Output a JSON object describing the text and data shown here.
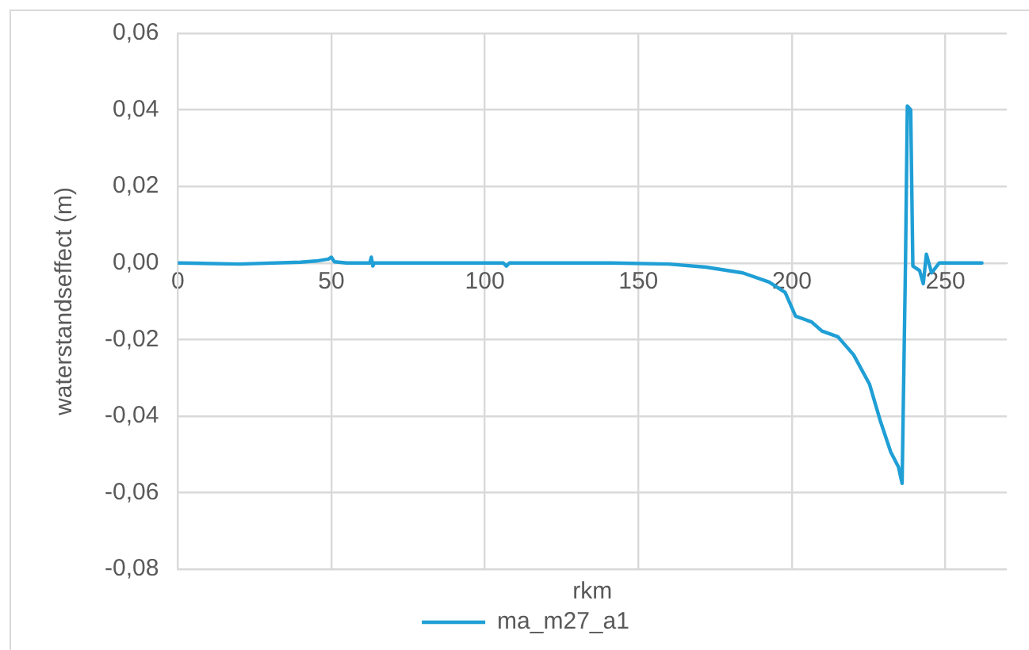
{
  "chart_data": {
    "type": "line",
    "xlabel": "rkm",
    "ylabel": "waterstandseffect (m)",
    "xlim": [
      0,
      270
    ],
    "xticks": [
      0,
      50,
      100,
      150,
      200,
      250
    ],
    "ylim": [
      -0.08,
      0.06
    ],
    "yticks": [
      {
        "value": -0.08,
        "label": "-0,08"
      },
      {
        "value": -0.06,
        "label": "-0,06"
      },
      {
        "value": -0.04,
        "label": "-0,04"
      },
      {
        "value": -0.02,
        "label": "-0,02"
      },
      {
        "value": 0,
        "label": "0,00"
      },
      {
        "value": 0.02,
        "label": "0,02"
      },
      {
        "value": 0.04,
        "label": "0,04"
      },
      {
        "value": 0.06,
        "label": "0,06"
      }
    ],
    "grid": true,
    "legend": "bottom",
    "marker": "none",
    "line_style": "solid",
    "series": [
      {
        "name": "ma_m27_a1",
        "color": "#1f9fd5",
        "x": [
          0,
          20,
          40,
          45,
          49,
          50,
          51,
          55,
          62.5,
          63,
          63.5,
          64,
          100,
          106,
          107,
          108,
          141,
          160,
          172,
          184,
          192.6,
          197.8,
          201.2,
          206.4,
          209.8,
          215,
          220.1,
          225.3,
          228.7,
          232.2,
          234.7,
          235.9,
          237,
          237.6,
          238.7,
          239.4,
          241.6,
          242.8,
          243.8,
          245.5,
          248,
          261.9
        ],
        "values": [
          0,
          -0.0003,
          0.0002,
          0.0005,
          0.001,
          0.0015,
          0.0003,
          0,
          0,
          0.0015,
          -0.0008,
          0,
          0,
          0,
          -0.0008,
          0,
          0,
          -0.0003,
          -0.0011,
          -0.0026,
          -0.005,
          -0.0077,
          -0.0139,
          -0.0154,
          -0.0178,
          -0.0193,
          -0.024,
          -0.0317,
          -0.041,
          -0.0494,
          -0.0533,
          -0.0576,
          0,
          0.041,
          0.04,
          -0.0008,
          -0.002,
          -0.0054,
          0.0023,
          -0.0026,
          0,
          0
        ]
      }
    ]
  }
}
